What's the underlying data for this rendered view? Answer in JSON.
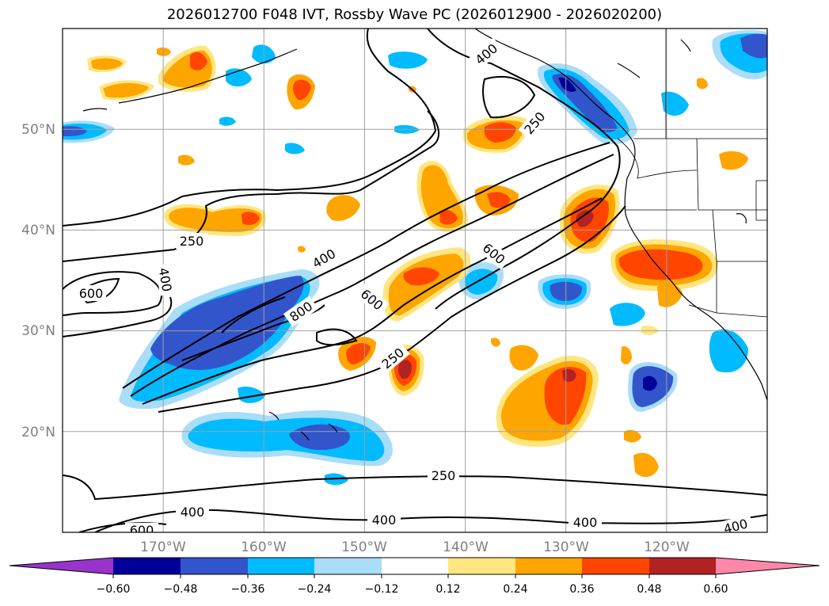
{
  "title": "2026012700 F048 IVT, Rossby Wave PC (2026012900 - 2026020200)",
  "map": {
    "lon_range": [
      -180,
      -110
    ],
    "lat_range": [
      10,
      60
    ],
    "lat_labels": [
      "50°N",
      "40°N",
      "30°N",
      "20°N"
    ],
    "lon_labels": [
      "170°W",
      "160°W",
      "150°W",
      "140°W",
      "130°W",
      "120°W"
    ],
    "gridline_color": "#a0a0a0",
    "contour_labels": [
      "250",
      "400",
      "600",
      "800"
    ]
  },
  "colorbar": {
    "tick_labels": [
      "−0.60",
      "−0.48",
      "−0.36",
      "−0.24",
      "−0.12",
      "0.12",
      "0.24",
      "0.36",
      "0.48",
      "0.60"
    ],
    "colors": [
      "#9933cc",
      "#000099",
      "#3355cc",
      "#00bbff",
      "#aaddf8",
      "#ffffff",
      "#ffe680",
      "#ffa500",
      "#ff4500",
      "#b22222",
      "#ff88aa"
    ]
  }
}
